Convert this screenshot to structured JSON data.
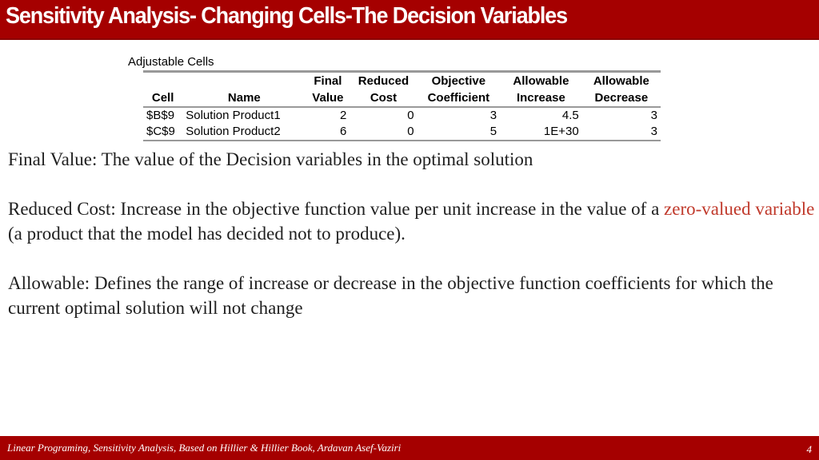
{
  "header": {
    "title": "Sensitivity Analysis- Changing Cells-The Decision Variables"
  },
  "table": {
    "caption": "Adjustable Cells",
    "header_row1": [
      "",
      "",
      "Final",
      "Reduced",
      "Objective",
      "Allowable",
      "Allowable"
    ],
    "header_row2": [
      "Cell",
      "Name",
      "Value",
      "Cost",
      "Coefficient",
      "Increase",
      "Decrease"
    ],
    "rows": [
      [
        "$B$9",
        "Solution Product1",
        "2",
        "0",
        "3",
        "4.5",
        "3"
      ],
      [
        "$C$9",
        "Solution Product2",
        "6",
        "0",
        "5",
        "1E+30",
        "3"
      ]
    ]
  },
  "paragraphs": {
    "final_value": "Final Value: The value of the Decision variables in the optimal solution",
    "reduced_cost_a": "Reduced Cost: Increase in the objective function value per unit increase in the value of a ",
    "reduced_cost_highlight": "zero-valued variable",
    "reduced_cost_b": " (a product that the model has  decided  not to produce).",
    "allowable": "Allowable: Defines the range of increase or decrease in the objective function coefficients for which the current optimal solution will not change"
  },
  "footer": {
    "text": "Linear Programing, Sensitivity Analysis, Based on Hillier & Hillier Book, Ardavan Asef-Vaziri",
    "page": "4"
  },
  "colors": {
    "brand_red": "#a50000",
    "highlight_red": "#c0392b"
  }
}
